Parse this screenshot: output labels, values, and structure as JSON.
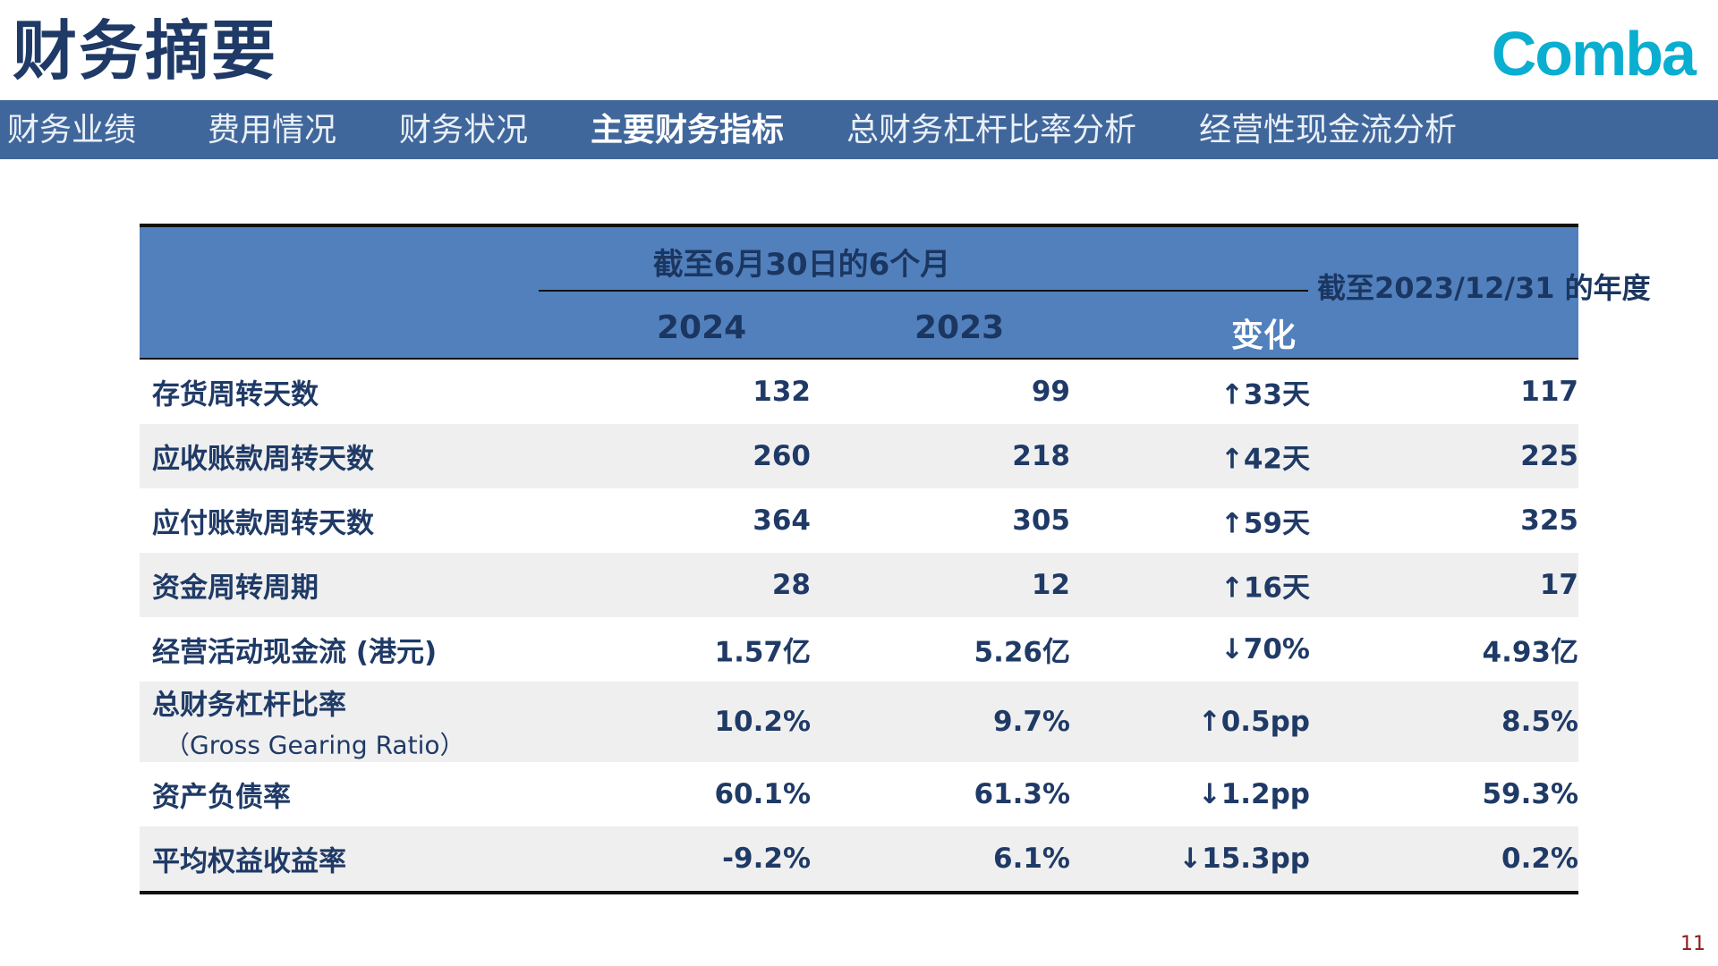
{
  "header": {
    "title": "财务摘要",
    "logo_text": "Comba",
    "brand_color": "#0aaed0"
  },
  "nav": {
    "items": [
      {
        "label": "财务业绩",
        "active": false
      },
      {
        "label": "费用情况",
        "active": false
      },
      {
        "label": "财务状况",
        "active": false
      },
      {
        "label": "主要财务指标",
        "active": true
      },
      {
        "label": "总财务杠杆比率分析",
        "active": false
      },
      {
        "label": "经营性现金流分析",
        "active": false
      }
    ],
    "bar_color": "#40679b"
  },
  "table": {
    "header_color": "#5180bd",
    "group_header": "截至6月30日的6个月",
    "col_2024": "2024",
    "col_2023": "2023",
    "col_change": "变化",
    "col_annual": "截至2023/12/31 的年度",
    "rows": [
      {
        "label": "存货周转天数",
        "sub": "",
        "v2024": "132",
        "v2023": "99",
        "change": "↑33天",
        "annual": "117"
      },
      {
        "label": "应收账款周转天数",
        "sub": "",
        "v2024": "260",
        "v2023": "218",
        "change": "↑42天",
        "annual": "225"
      },
      {
        "label": "应付账款周转天数",
        "sub": "",
        "v2024": "364",
        "v2023": "305",
        "change": "↑59天",
        "annual": "325"
      },
      {
        "label": "资金周转周期",
        "sub": "",
        "v2024": "28",
        "v2023": "12",
        "change": "↑16天",
        "annual": "17"
      },
      {
        "label": "经营活动现金流 (港元)",
        "sub": "",
        "v2024": "1.57亿",
        "v2023": "5.26亿",
        "change": "↓70%",
        "annual": "4.93亿"
      },
      {
        "label": "总财务杠杆比率",
        "sub": "（Gross Gearing Ratio）",
        "v2024": "10.2%",
        "v2023": "9.7%",
        "change": "↑0.5pp",
        "annual": "8.5%"
      },
      {
        "label": "资产负债率",
        "sub": "",
        "v2024": "60.1%",
        "v2023": "61.3%",
        "change": "↓1.2pp",
        "annual": "59.3%"
      },
      {
        "label": "平均权益收益率",
        "sub": "",
        "v2024": "-9.2%",
        "v2023": "6.1%",
        "change": "↓15.3pp",
        "annual": "0.2%"
      }
    ]
  },
  "footer": {
    "page_number": "11"
  }
}
